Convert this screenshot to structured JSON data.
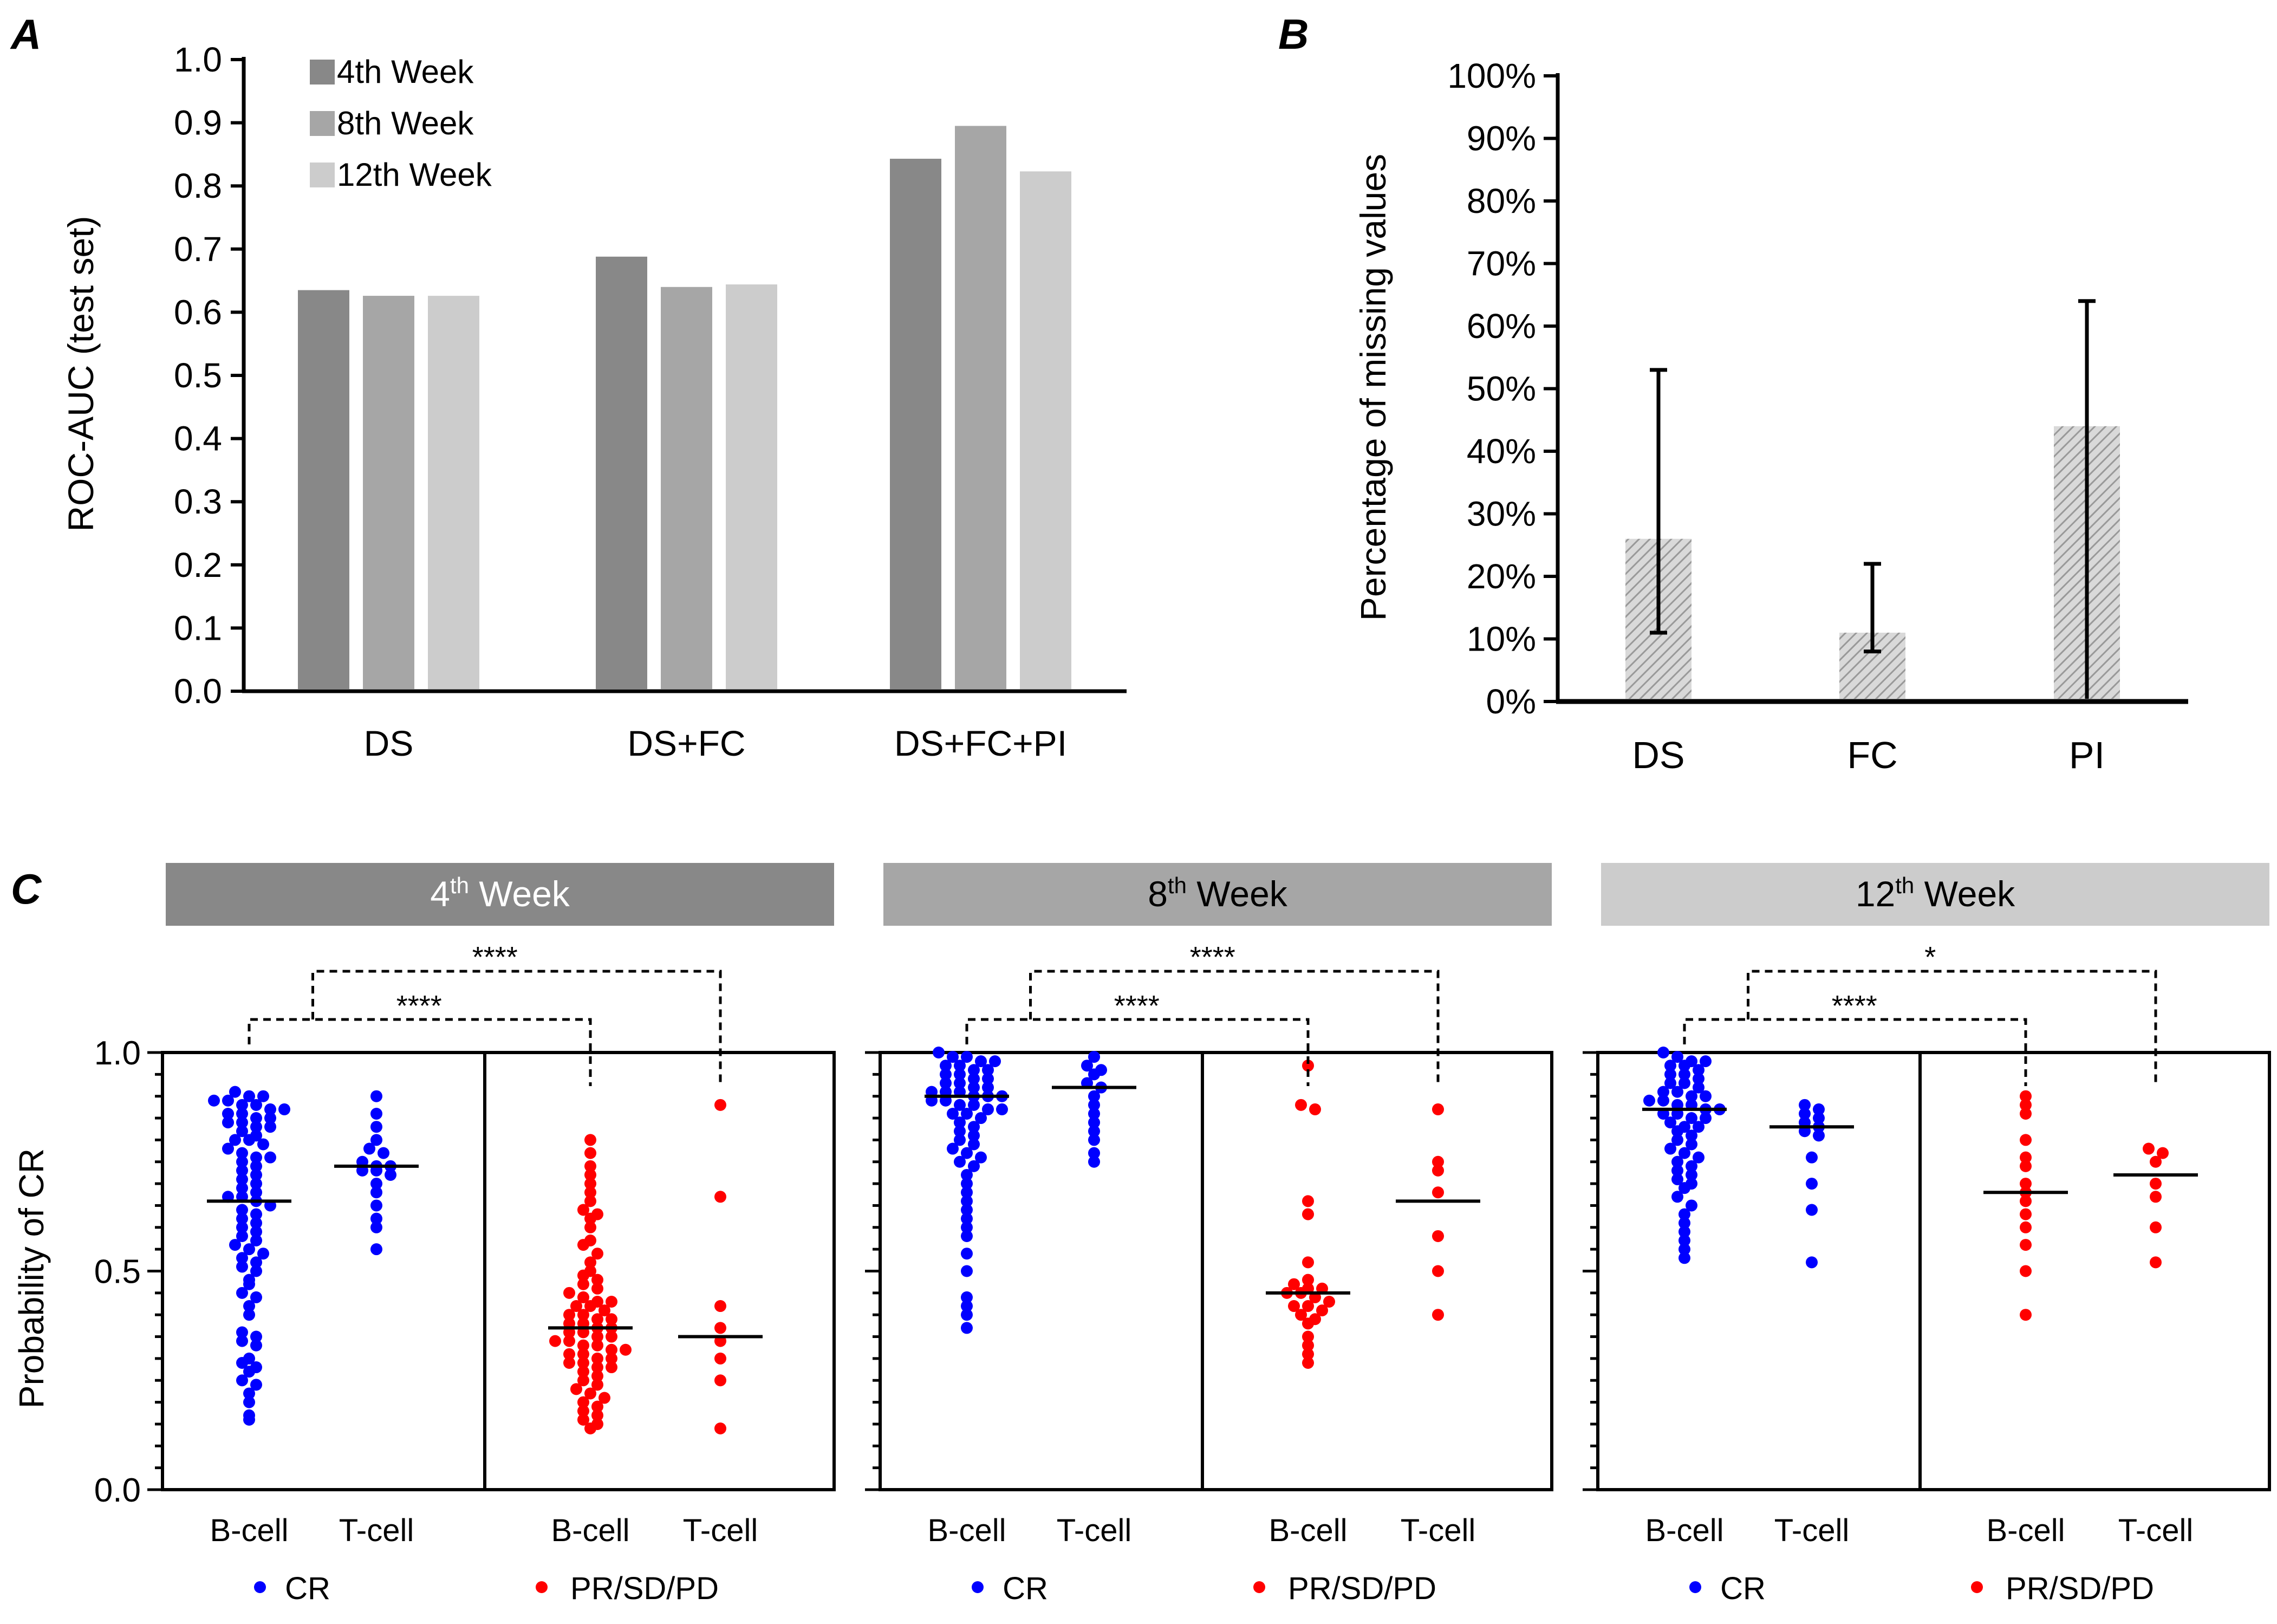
{
  "chart_data": [
    {
      "panel": "A",
      "type": "bar",
      "categories": [
        "DS",
        "DS+FC",
        "DS+FC+PI"
      ],
      "series": [
        {
          "name": "4th Week",
          "color": "#888888",
          "values": [
            0.635,
            0.688,
            0.843
          ]
        },
        {
          "name": "8th Week",
          "color": "#a6a6a6",
          "values": [
            0.626,
            0.64,
            0.895
          ]
        },
        {
          "name": "12th Week",
          "color": "#cccccc",
          "values": [
            0.626,
            0.644,
            0.823
          ]
        }
      ],
      "ylabel": "ROC-AUC (test set)",
      "xlabel": "",
      "ylim": [
        0,
        1.0
      ],
      "yticks": [
        "0.0",
        "0.1",
        "0.2",
        "0.3",
        "0.4",
        "0.5",
        "0.6",
        "0.7",
        "0.8",
        "0.9",
        "1.0"
      ],
      "legend_position": "top-left"
    },
    {
      "panel": "B",
      "type": "bar",
      "categories": [
        "DS",
        "FC",
        "PI"
      ],
      "values": [
        26,
        11,
        44
      ],
      "error_low": [
        11,
        8,
        0
      ],
      "error_high": [
        53,
        22,
        64
      ],
      "bar_color": "#b0b0b0",
      "ylabel": "Percentage of missing values",
      "ylim": [
        0,
        100
      ],
      "yticks": [
        "0%",
        "10%",
        "20%",
        "30%",
        "40%",
        "50%",
        "60%",
        "70%",
        "80%",
        "90%",
        "100%"
      ]
    },
    {
      "panel": "C",
      "type": "scatter",
      "ylabel": "Probability of CR",
      "ylim": [
        0,
        1
      ],
      "yticks": [
        "0.0",
        "0.5",
        "1.0"
      ],
      "group_labels": [
        "B-cell",
        "T-cell",
        "B-cell",
        "T-cell"
      ],
      "legend": [
        {
          "label": "CR",
          "color": "#0000ff"
        },
        {
          "label": "PR/SD/PD",
          "color": "#ff0000"
        }
      ],
      "subplots": [
        {
          "header": "Week",
          "header_num": "4",
          "header_sup": "th",
          "header_color": "#888888",
          "significance": [
            "****",
            "****"
          ],
          "groups": [
            {
              "label": "B-cell",
              "class": "CR",
              "median": 0.66,
              "values": [
                0.91,
                0.9,
                0.9,
                0.89,
                0.89,
                0.88,
                0.88,
                0.87,
                0.87,
                0.86,
                0.86,
                0.85,
                0.85,
                0.84,
                0.84,
                0.83,
                0.83,
                0.82,
                0.81,
                0.8,
                0.8,
                0.79,
                0.78,
                0.77,
                0.76,
                0.76,
                0.75,
                0.74,
                0.73,
                0.72,
                0.71,
                0.7,
                0.69,
                0.68,
                0.67,
                0.67,
                0.66,
                0.65,
                0.64,
                0.63,
                0.62,
                0.61,
                0.6,
                0.59,
                0.58,
                0.57,
                0.56,
                0.55,
                0.54,
                0.53,
                0.52,
                0.51,
                0.5,
                0.48,
                0.47,
                0.45,
                0.44,
                0.42,
                0.4,
                0.36,
                0.35,
                0.34,
                0.33,
                0.3,
                0.29,
                0.28,
                0.27,
                0.25,
                0.24,
                0.22,
                0.2,
                0.17,
                0.16
              ]
            },
            {
              "label": "T-cell",
              "class": "CR",
              "median": 0.74,
              "values": [
                0.9,
                0.86,
                0.83,
                0.8,
                0.78,
                0.77,
                0.75,
                0.74,
                0.74,
                0.73,
                0.73,
                0.72,
                0.7,
                0.68,
                0.65,
                0.62,
                0.6,
                0.55
              ]
            },
            {
              "label": "B-cell",
              "class": "PR/SD/PD",
              "median": 0.37,
              "values": [
                0.8,
                0.77,
                0.74,
                0.72,
                0.7,
                0.68,
                0.66,
                0.64,
                0.63,
                0.62,
                0.6,
                0.57,
                0.56,
                0.54,
                0.52,
                0.5,
                0.49,
                0.48,
                0.47,
                0.46,
                0.45,
                0.44,
                0.43,
                0.43,
                0.42,
                0.42,
                0.41,
                0.4,
                0.4,
                0.39,
                0.39,
                0.38,
                0.38,
                0.37,
                0.37,
                0.36,
                0.36,
                0.35,
                0.35,
                0.34,
                0.34,
                0.33,
                0.33,
                0.32,
                0.32,
                0.31,
                0.31,
                0.3,
                0.3,
                0.29,
                0.29,
                0.28,
                0.28,
                0.27,
                0.26,
                0.25,
                0.24,
                0.23,
                0.22,
                0.21,
                0.2,
                0.19,
                0.18,
                0.17,
                0.16,
                0.15,
                0.14
              ]
            },
            {
              "label": "T-cell",
              "class": "PR/SD/PD",
              "median": 0.35,
              "values": [
                0.88,
                0.67,
                0.42,
                0.37,
                0.34,
                0.3,
                0.25,
                0.14
              ]
            }
          ]
        },
        {
          "header": "Week",
          "header_num": "8",
          "header_sup": "th",
          "header_color": "#a6a6a6",
          "significance": [
            "****",
            "****"
          ],
          "groups": [
            {
              "label": "B-cell",
              "class": "CR",
              "median": 0.9,
              "values": [
                1.0,
                0.99,
                0.99,
                0.98,
                0.98,
                0.97,
                0.97,
                0.96,
                0.96,
                0.95,
                0.95,
                0.94,
                0.94,
                0.93,
                0.93,
                0.92,
                0.92,
                0.91,
                0.91,
                0.91,
                0.9,
                0.9,
                0.9,
                0.89,
                0.89,
                0.88,
                0.88,
                0.87,
                0.87,
                0.86,
                0.86,
                0.85,
                0.84,
                0.83,
                0.82,
                0.81,
                0.8,
                0.79,
                0.78,
                0.77,
                0.76,
                0.75,
                0.74,
                0.72,
                0.7,
                0.68,
                0.66,
                0.64,
                0.62,
                0.6,
                0.58,
                0.54,
                0.5,
                0.44,
                0.42,
                0.4,
                0.37
              ]
            },
            {
              "label": "T-cell",
              "class": "CR",
              "median": 0.92,
              "values": [
                0.99,
                0.97,
                0.96,
                0.95,
                0.93,
                0.92,
                0.9,
                0.88,
                0.86,
                0.84,
                0.82,
                0.8,
                0.77,
                0.75
              ]
            },
            {
              "label": "B-cell",
              "class": "PR/SD/PD",
              "median": 0.45,
              "values": [
                0.97,
                0.88,
                0.87,
                0.66,
                0.63,
                0.52,
                0.48,
                0.47,
                0.46,
                0.46,
                0.45,
                0.45,
                0.44,
                0.43,
                0.42,
                0.42,
                0.41,
                0.4,
                0.39,
                0.38,
                0.35,
                0.33,
                0.31,
                0.29
              ]
            },
            {
              "label": "T-cell",
              "class": "PR/SD/PD",
              "median": 0.66,
              "values": [
                0.87,
                0.75,
                0.73,
                0.68,
                0.58,
                0.5,
                0.4
              ]
            }
          ]
        },
        {
          "header": "Week",
          "header_num": "12",
          "header_sup": "th",
          "header_color": "#cccccc",
          "significance": [
            "****",
            "*"
          ],
          "groups": [
            {
              "label": "B-cell",
              "class": "CR",
              "median": 0.87,
              "values": [
                1.0,
                0.99,
                0.98,
                0.98,
                0.97,
                0.97,
                0.96,
                0.95,
                0.95,
                0.94,
                0.93,
                0.93,
                0.92,
                0.91,
                0.91,
                0.9,
                0.9,
                0.89,
                0.89,
                0.88,
                0.88,
                0.87,
                0.87,
                0.86,
                0.86,
                0.85,
                0.85,
                0.84,
                0.83,
                0.83,
                0.82,
                0.81,
                0.8,
                0.79,
                0.78,
                0.77,
                0.76,
                0.75,
                0.74,
                0.73,
                0.72,
                0.71,
                0.7,
                0.69,
                0.67,
                0.65,
                0.63,
                0.61,
                0.59,
                0.57,
                0.55,
                0.53
              ]
            },
            {
              "label": "T-cell",
              "class": "CR",
              "median": 0.83,
              "values": [
                0.88,
                0.87,
                0.86,
                0.85,
                0.84,
                0.83,
                0.82,
                0.81,
                0.76,
                0.7,
                0.64,
                0.52
              ]
            },
            {
              "label": "B-cell",
              "class": "PR/SD/PD",
              "median": 0.68,
              "values": [
                0.9,
                0.88,
                0.86,
                0.8,
                0.76,
                0.74,
                0.7,
                0.68,
                0.66,
                0.63,
                0.6,
                0.56,
                0.5,
                0.4
              ]
            },
            {
              "label": "T-cell",
              "class": "PR/SD/PD",
              "median": 0.72,
              "values": [
                0.78,
                0.77,
                0.75,
                0.7,
                0.67,
                0.6,
                0.52
              ]
            }
          ]
        }
      ]
    }
  ],
  "panel_labels": {
    "a": "A",
    "b": "B",
    "c": "C"
  }
}
